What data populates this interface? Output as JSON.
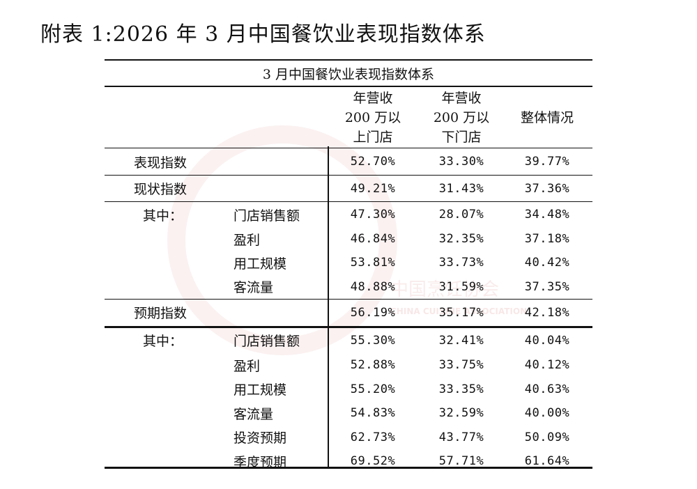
{
  "title": "附表 1:2026 年 3 月中国餐饮业表现指数体系",
  "watermark": {
    "cn": "中国烹饪协会",
    "en": "CHINA CUISINE ASSOCIATION"
  },
  "table": {
    "caption": "3 月中国餐饮业表现指数体系",
    "columns": [
      {
        "l1": "年营收",
        "l2": "200 万以",
        "l3": "上门店"
      },
      {
        "l1": "年营收",
        "l2": "200 万以",
        "l3": "下门店"
      },
      {
        "l1": "",
        "l2": "整体情况",
        "l3": ""
      }
    ],
    "performance": {
      "label": "表现指数",
      "values": [
        "52.70%",
        "33.30%",
        "39.77%"
      ]
    },
    "current": {
      "label": "现状指数",
      "values": [
        "49.21%",
        "31.43%",
        "37.36%"
      ],
      "sub_label": "其中：",
      "items": [
        {
          "label": "门店销售额",
          "values": [
            "47.30%",
            "28.07%",
            "34.48%"
          ]
        },
        {
          "label": "盈利",
          "values": [
            "46.84%",
            "32.35%",
            "37.18%"
          ]
        },
        {
          "label": "用工规模",
          "values": [
            "53.81%",
            "33.73%",
            "40.42%"
          ]
        },
        {
          "label": "客流量",
          "values": [
            "48.88%",
            "31.59%",
            "37.35%"
          ]
        }
      ]
    },
    "expected": {
      "label": "预期指数",
      "values": [
        "56.19%",
        "35.17%",
        "42.18%"
      ],
      "sub_label": "其中：",
      "items": [
        {
          "label": "门店销售额",
          "values": [
            "55.30%",
            "32.41%",
            "40.04%"
          ]
        },
        {
          "label": "盈利",
          "values": [
            "52.88%",
            "33.75%",
            "40.12%"
          ]
        },
        {
          "label": "用工规模",
          "values": [
            "55.20%",
            "33.35%",
            "40.63%"
          ]
        },
        {
          "label": "客流量",
          "values": [
            "54.83%",
            "32.59%",
            "40.00%"
          ]
        },
        {
          "label": "投资预期",
          "values": [
            "62.73%",
            "43.77%",
            "50.09%"
          ]
        },
        {
          "label": "季度预期",
          "values": [
            "69.52%",
            "57.71%",
            "61.64%"
          ]
        }
      ]
    }
  }
}
